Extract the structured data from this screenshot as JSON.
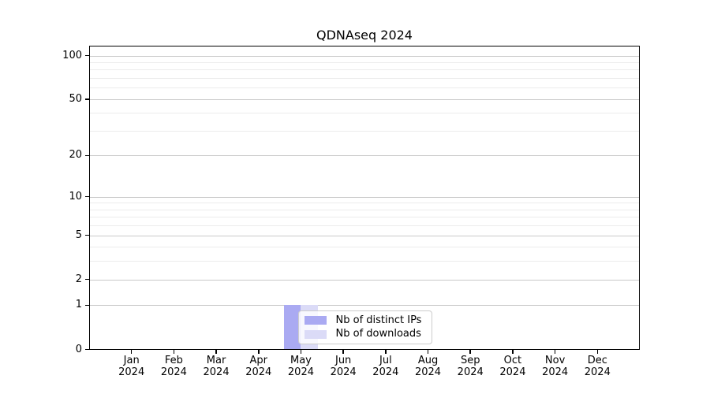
{
  "chart_data": {
    "type": "bar",
    "title": "QDNAseq 2024",
    "categories": [
      "Jan",
      "Feb",
      "Mar",
      "Apr",
      "May",
      "Jun",
      "Jul",
      "Aug",
      "Sep",
      "Oct",
      "Nov",
      "Dec"
    ],
    "year": "2024",
    "series": [
      {
        "name": "Nb of distinct IPs",
        "color": "#aaaaf2",
        "values": [
          0,
          0,
          0,
          0,
          1,
          0,
          0,
          0,
          0,
          0,
          0,
          0
        ]
      },
      {
        "name": "Nb of downloads",
        "color": "#dbdbf7",
        "values": [
          0,
          0,
          0,
          0,
          1,
          0,
          0,
          0,
          0,
          0,
          0,
          0
        ]
      }
    ],
    "yscale": "log1p",
    "ylim": [
      0,
      117
    ],
    "yticks": [
      0,
      1,
      2,
      5,
      10,
      20,
      50,
      100
    ],
    "yminor": [
      3,
      4,
      6,
      7,
      8,
      9,
      30,
      40,
      60,
      70,
      80,
      90
    ],
    "grid": true,
    "legend": [
      "Nb of distinct IPs",
      "Nb of downloads"
    ],
    "colors": {
      "major_grid": "#c9c9c9",
      "minor_grid": "#ececec",
      "axis": "#000000",
      "legend_border": "#cccccc"
    }
  }
}
